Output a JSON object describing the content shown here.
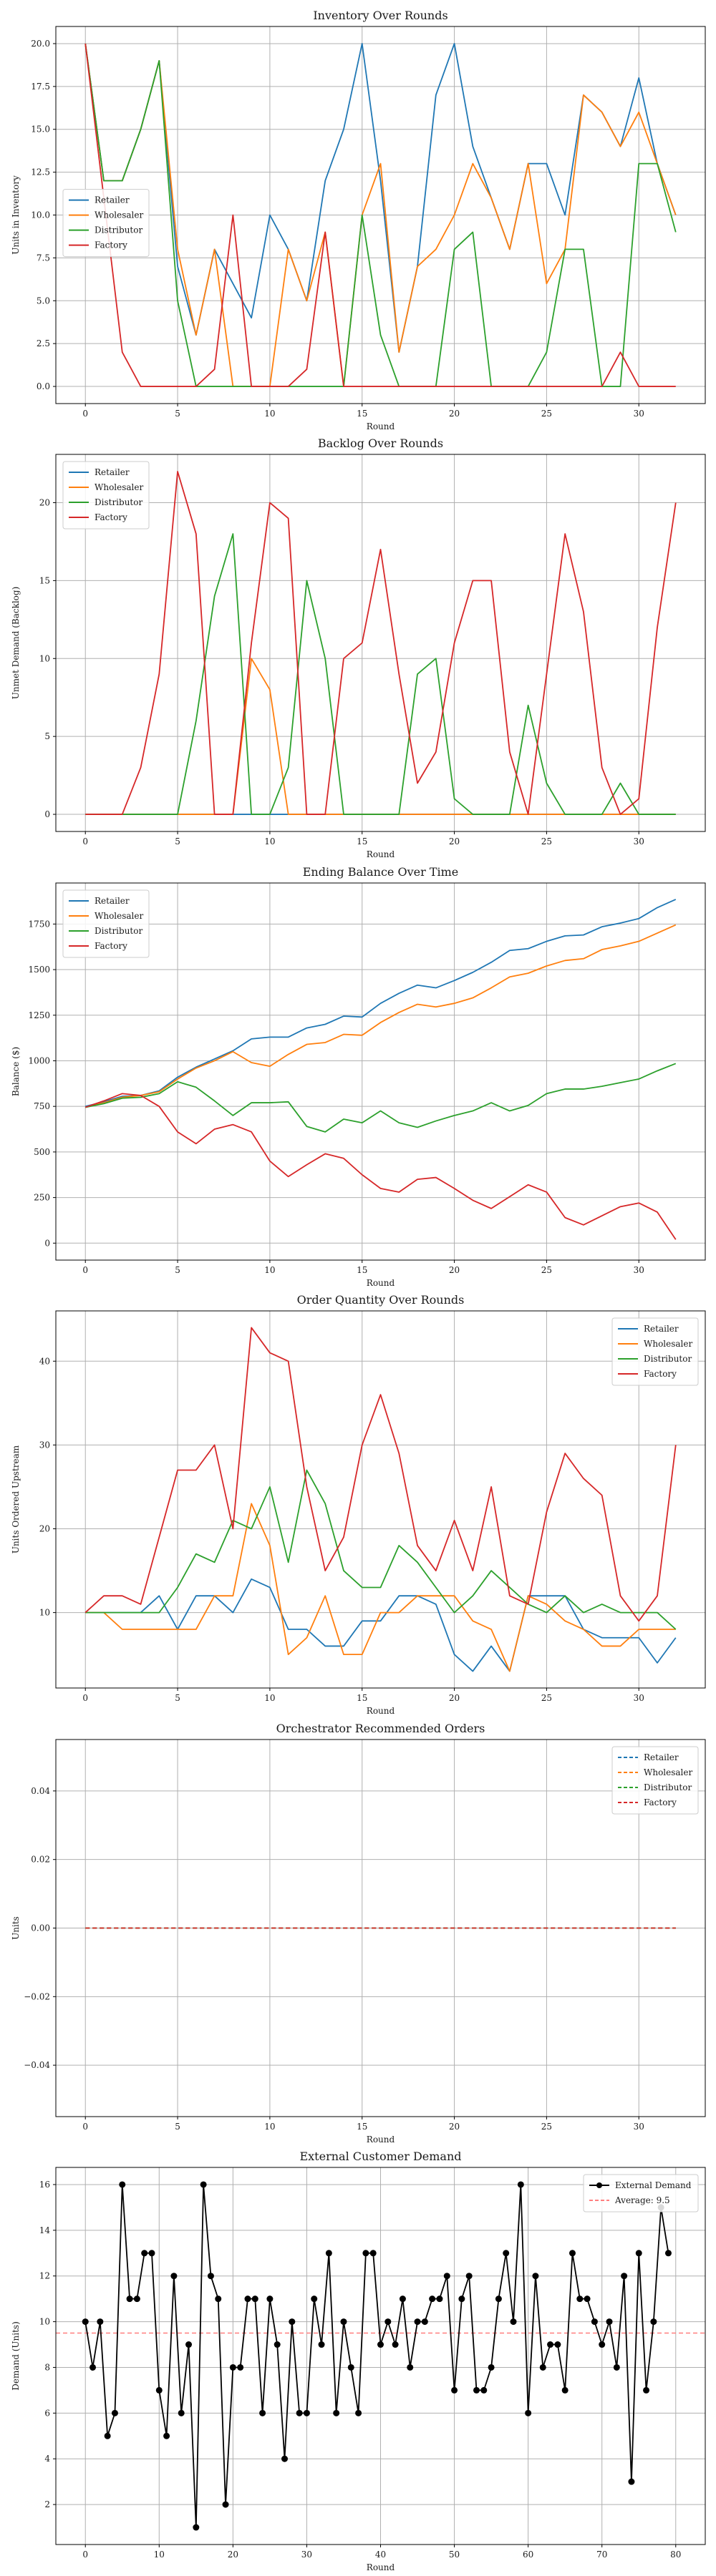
{
  "colors": {
    "retailer": "#1f77b4",
    "wholesaler": "#ff7f0e",
    "distributor": "#2ca02c",
    "factory": "#d62728",
    "external": "#000000",
    "average": "#ff7f7f"
  },
  "chart_data": [
    {
      "type": "line",
      "title": "Inventory Over Rounds",
      "xlabel": "Round",
      "ylabel": "Units in Inventory",
      "xlim": [
        -1.6,
        33.6
      ],
      "ylim": [
        -1,
        21
      ],
      "xticks": [
        0,
        5,
        10,
        15,
        20,
        25,
        30
      ],
      "yticks": [
        0.0,
        2.5,
        5.0,
        7.5,
        10.0,
        12.5,
        15.0,
        17.5,
        20.0
      ],
      "ytick_labels": [
        "0.0",
        "2.5",
        "5.0",
        "7.5",
        "10.0",
        "12.5",
        "15.0",
        "17.5",
        "20.0"
      ],
      "grid": true,
      "legend_position": "upper-left",
      "legend_y_anchor": 11.5,
      "series": [
        {
          "name": "Retailer",
          "color_key": "retailer",
          "values": [
            20,
            12,
            12,
            15,
            19,
            7,
            3,
            8,
            6,
            4,
            10,
            8,
            5,
            12,
            15,
            20,
            12,
            2,
            7,
            17,
            20,
            14,
            11,
            8,
            13,
            13,
            10,
            17,
            16,
            14,
            18,
            13,
            10
          ]
        },
        {
          "name": "Wholesaler",
          "color_key": "wholesaler",
          "values": [
            20,
            12,
            12,
            15,
            19,
            8,
            3,
            8,
            0,
            0,
            0,
            8,
            5,
            9,
            0,
            10,
            13,
            2,
            7,
            8,
            10,
            13,
            11,
            8,
            13,
            6,
            8,
            17,
            16,
            14,
            16,
            13,
            10
          ]
        },
        {
          "name": "Distributor",
          "color_key": "distributor",
          "values": [
            20,
            12,
            12,
            15,
            19,
            5,
            0,
            0,
            0,
            0,
            0,
            0,
            0,
            0,
            0,
            10,
            3,
            0,
            0,
            0,
            8,
            9,
            0,
            0,
            0,
            2,
            8,
            8,
            0,
            0,
            13,
            13,
            9
          ]
        },
        {
          "name": "Factory",
          "color_key": "factory",
          "values": [
            20,
            11,
            2,
            0,
            0,
            0,
            0,
            1,
            10,
            0,
            0,
            0,
            1,
            9,
            0,
            0,
            0,
            0,
            0,
            0,
            0,
            0,
            0,
            0,
            0,
            0,
            0,
            0,
            0,
            2,
            0,
            0,
            0
          ]
        }
      ]
    },
    {
      "type": "line",
      "title": "Backlog Over Rounds",
      "xlabel": "Round",
      "ylabel": "Unmet Demand (Backlog)",
      "xlim": [
        -1.6,
        33.6
      ],
      "ylim": [
        -1.1,
        23.1
      ],
      "xticks": [
        0,
        5,
        10,
        15,
        20,
        25,
        30
      ],
      "yticks": [
        0,
        5,
        10,
        15,
        20
      ],
      "ytick_labels": [
        "0",
        "5",
        "10",
        "15",
        "20"
      ],
      "grid": true,
      "legend_position": "upper-left",
      "series": [
        {
          "name": "Retailer",
          "color_key": "retailer",
          "values": [
            0,
            0,
            0,
            0,
            0,
            0,
            0,
            0,
            0,
            0,
            0,
            0,
            0,
            0,
            0,
            0,
            0,
            0,
            0,
            0,
            0,
            0,
            0,
            0,
            0,
            0,
            0,
            0,
            0,
            0,
            0,
            0,
            0
          ]
        },
        {
          "name": "Wholesaler",
          "color_key": "wholesaler",
          "values": [
            0,
            0,
            0,
            0,
            0,
            0,
            0,
            0,
            0,
            10,
            8,
            0,
            0,
            0,
            0,
            0,
            0,
            0,
            0,
            0,
            0,
            0,
            0,
            0,
            0,
            0,
            0,
            0,
            0,
            0,
            0,
            0,
            0
          ]
        },
        {
          "name": "Distributor",
          "color_key": "distributor",
          "values": [
            0,
            0,
            0,
            0,
            0,
            0,
            6,
            14,
            18,
            0,
            0,
            3,
            15,
            10,
            0,
            0,
            0,
            0,
            9,
            10,
            1,
            0,
            0,
            0,
            7,
            2,
            0,
            0,
            0,
            2,
            0,
            0,
            0
          ]
        },
        {
          "name": "Factory",
          "color_key": "factory",
          "values": [
            0,
            0,
            0,
            3,
            9,
            22,
            18,
            0,
            0,
            11,
            20,
            19,
            0,
            0,
            10,
            11,
            17,
            9,
            2,
            4,
            11,
            15,
            15,
            4,
            0,
            9,
            18,
            13,
            3,
            0,
            1,
            12,
            20
          ]
        }
      ]
    },
    {
      "type": "line",
      "title": "Ending Balance Over Time",
      "xlabel": "Round",
      "ylabel": "Balance ($)",
      "xlim": [
        -1.6,
        33.6
      ],
      "ylim": [
        -93,
        1975
      ],
      "xticks": [
        0,
        5,
        10,
        15,
        20,
        25,
        30
      ],
      "yticks": [
        0,
        250,
        500,
        750,
        1000,
        1250,
        1500,
        1750
      ],
      "ytick_labels": [
        "0",
        "250",
        "500",
        "750",
        "1000",
        "1250",
        "1500",
        "1750"
      ],
      "grid": true,
      "legend_position": "upper-left",
      "series": [
        {
          "name": "Retailer",
          "color_key": "retailer",
          "values": [
            750,
            775,
            805,
            810,
            835,
            910,
            965,
            1010,
            1055,
            1120,
            1130,
            1130,
            1180,
            1200,
            1245,
            1240,
            1315,
            1370,
            1415,
            1400,
            1440,
            1485,
            1540,
            1605,
            1615,
            1655,
            1685,
            1690,
            1735,
            1755,
            1780,
            1840,
            1885
          ]
        },
        {
          "name": "Wholesaler",
          "color_key": "wholesaler",
          "values": [
            745,
            770,
            800,
            810,
            830,
            900,
            960,
            1000,
            1050,
            990,
            970,
            1035,
            1090,
            1100,
            1145,
            1140,
            1210,
            1265,
            1310,
            1295,
            1315,
            1345,
            1400,
            1460,
            1480,
            1520,
            1550,
            1560,
            1610,
            1630,
            1655,
            1700,
            1745
          ]
        },
        {
          "name": "Distributor",
          "color_key": "distributor",
          "values": [
            745,
            765,
            795,
            800,
            820,
            885,
            855,
            780,
            700,
            770,
            770,
            775,
            640,
            610,
            680,
            660,
            725,
            660,
            635,
            670,
            700,
            725,
            770,
            725,
            755,
            820,
            845,
            845,
            860,
            880,
            900,
            945,
            985
          ]
        },
        {
          "name": "Factory",
          "color_key": "factory",
          "values": [
            745,
            780,
            820,
            810,
            750,
            610,
            545,
            625,
            650,
            610,
            450,
            365,
            430,
            490,
            465,
            375,
            300,
            280,
            350,
            360,
            300,
            235,
            190,
            255,
            320,
            280,
            140,
            100,
            150,
            200,
            220,
            170,
            20
          ]
        }
      ]
    },
    {
      "type": "line",
      "title": "Order Quantity Over Rounds",
      "xlabel": "Round",
      "ylabel": "Units Ordered Upstream",
      "xlim": [
        -1.6,
        33.6
      ],
      "ylim": [
        1,
        46
      ],
      "xticks": [
        0,
        5,
        10,
        15,
        20,
        25,
        30
      ],
      "yticks": [
        10,
        20,
        30,
        40
      ],
      "ytick_labels": [
        "10",
        "20",
        "30",
        "40"
      ],
      "grid": true,
      "legend_position": "upper-right",
      "series": [
        {
          "name": "Retailer",
          "color_key": "retailer",
          "values": [
            10,
            10,
            10,
            10,
            12,
            8,
            12,
            12,
            10,
            14,
            13,
            8,
            8,
            6,
            6,
            9,
            9,
            12,
            12,
            11,
            5,
            3,
            6,
            3,
            12,
            12,
            12,
            8,
            7,
            7,
            7,
            4,
            7
          ]
        },
        {
          "name": "Wholesaler",
          "color_key": "wholesaler",
          "values": [
            10,
            10,
            8,
            8,
            8,
            8,
            8,
            12,
            12,
            23,
            18,
            5,
            7,
            12,
            5,
            5,
            10,
            10,
            12,
            12,
            12,
            9,
            8,
            3,
            12,
            11,
            9,
            8,
            6,
            6,
            8,
            8,
            8
          ]
        },
        {
          "name": "Distributor",
          "color_key": "distributor",
          "values": [
            10,
            10,
            10,
            10,
            10,
            13,
            17,
            16,
            21,
            20,
            25,
            16,
            27,
            23,
            15,
            13,
            13,
            18,
            16,
            13,
            10,
            12,
            15,
            13,
            11,
            10,
            12,
            10,
            11,
            10,
            10,
            10,
            8
          ]
        },
        {
          "name": "Factory",
          "color_key": "factory",
          "values": [
            10,
            12,
            12,
            11,
            19,
            27,
            27,
            30,
            20,
            44,
            41,
            40,
            25,
            15,
            19,
            30,
            36,
            29,
            18,
            15,
            21,
            15,
            25,
            12,
            11,
            22,
            29,
            26,
            24,
            12,
            9,
            12,
            30
          ]
        }
      ]
    },
    {
      "type": "line",
      "title": "Orchestrator Recommended Orders",
      "xlabel": "Round",
      "ylabel": "Units",
      "xlim": [
        -1.6,
        33.6
      ],
      "ylim": [
        -0.055,
        0.055
      ],
      "xticks": [
        0,
        5,
        10,
        15,
        20,
        25,
        30
      ],
      "yticks": [
        -0.04,
        -0.02,
        0.0,
        0.02,
        0.04
      ],
      "ytick_labels": [
        "−0.04",
        "−0.02",
        "0.00",
        "0.02",
        "0.04"
      ],
      "grid": true,
      "dashed": true,
      "legend_position": "upper-right",
      "series": [
        {
          "name": "Retailer",
          "color_key": "retailer",
          "values": [
            0,
            0,
            0,
            0,
            0,
            0,
            0,
            0,
            0,
            0,
            0,
            0,
            0,
            0,
            0,
            0,
            0,
            0,
            0,
            0,
            0,
            0,
            0,
            0,
            0,
            0,
            0,
            0,
            0,
            0,
            0,
            0,
            0
          ]
        },
        {
          "name": "Wholesaler",
          "color_key": "wholesaler",
          "values": [
            0,
            0,
            0,
            0,
            0,
            0,
            0,
            0,
            0,
            0,
            0,
            0,
            0,
            0,
            0,
            0,
            0,
            0,
            0,
            0,
            0,
            0,
            0,
            0,
            0,
            0,
            0,
            0,
            0,
            0,
            0,
            0,
            0
          ]
        },
        {
          "name": "Distributor",
          "color_key": "distributor",
          "values": [
            0,
            0,
            0,
            0,
            0,
            0,
            0,
            0,
            0,
            0,
            0,
            0,
            0,
            0,
            0,
            0,
            0,
            0,
            0,
            0,
            0,
            0,
            0,
            0,
            0,
            0,
            0,
            0,
            0,
            0,
            0,
            0,
            0
          ]
        },
        {
          "name": "Factory",
          "color_key": "factory",
          "values": [
            0,
            0,
            0,
            0,
            0,
            0,
            0,
            0,
            0,
            0,
            0,
            0,
            0,
            0,
            0,
            0,
            0,
            0,
            0,
            0,
            0,
            0,
            0,
            0,
            0,
            0,
            0,
            0,
            0,
            0,
            0,
            0,
            0
          ]
        }
      ]
    },
    {
      "type": "line",
      "title": "External Customer Demand",
      "xlabel": "Round",
      "ylabel": "Demand (Units)",
      "xlim": [
        -4,
        84
      ],
      "ylim": [
        0.25,
        16.75
      ],
      "xticks": [
        0,
        10,
        20,
        30,
        40,
        50,
        60,
        70,
        80
      ],
      "yticks": [
        2,
        4,
        6,
        8,
        10,
        12,
        14,
        16
      ],
      "ytick_labels": [
        "2",
        "4",
        "6",
        "8",
        "10",
        "12",
        "14",
        "16"
      ],
      "grid": true,
      "legend_position": "upper-right",
      "markers": true,
      "series": [
        {
          "name": "External Demand",
          "color_key": "external",
          "values": [
            10,
            8,
            10,
            5,
            6,
            16,
            11,
            11,
            13,
            13,
            7,
            5,
            12,
            6,
            9,
            1,
            16,
            12,
            11,
            2,
            8,
            8,
            11,
            11,
            6,
            11,
            9,
            4,
            10,
            6,
            6,
            11,
            9,
            13,
            6,
            10,
            8,
            6,
            13,
            13,
            9,
            10,
            9,
            11,
            8,
            10,
            10,
            11,
            11,
            12,
            7,
            11,
            12,
            7,
            7,
            8,
            11,
            13,
            10,
            16,
            6,
            12,
            8,
            9,
            9,
            7,
            13,
            11,
            11,
            10,
            9,
            10,
            8,
            12,
            3,
            13,
            7,
            10,
            15,
            13
          ]
        }
      ],
      "reference_line": {
        "name": "Average: 9.5",
        "value": 9.5,
        "color_key": "average"
      }
    }
  ]
}
